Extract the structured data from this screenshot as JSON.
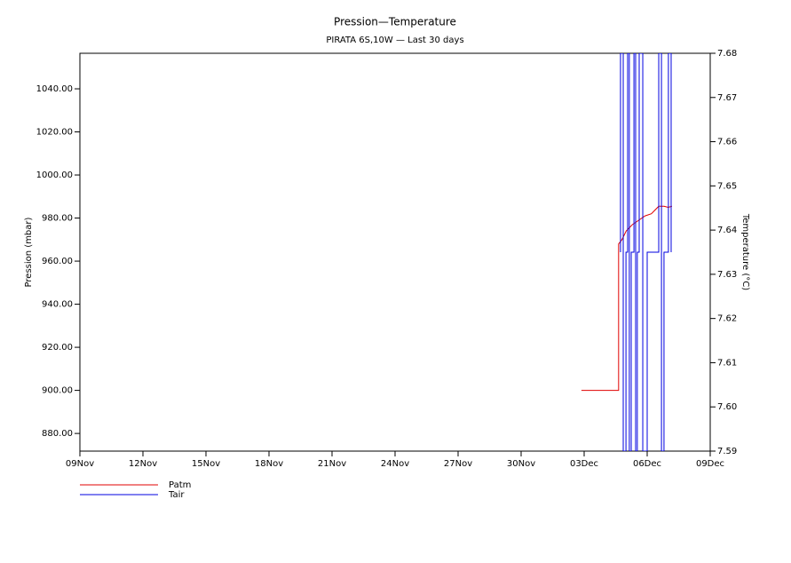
{
  "chart_data": {
    "type": "line",
    "title": "Pression—Temperature",
    "subtitle": "PIRATA 6S,10W — Last 30 days",
    "y_label": "Pression (mbar)",
    "y2_label": "Temperature (°C)",
    "xlim": [
      0,
      30
    ],
    "xticks": [
      {
        "value": 0,
        "label": "09Nov"
      },
      {
        "value": 3,
        "label": "12Nov"
      },
      {
        "value": 6,
        "label": "15Nov"
      },
      {
        "value": 9,
        "label": "18Nov"
      },
      {
        "value": 12,
        "label": "21Nov"
      },
      {
        "value": 15,
        "label": "24Nov"
      },
      {
        "value": 18,
        "label": "27Nov"
      },
      {
        "value": 21,
        "label": "30Nov"
      },
      {
        "value": 24,
        "label": "03Dec"
      },
      {
        "value": 27,
        "label": "06Dec"
      },
      {
        "value": 30,
        "label": "09Dec"
      }
    ],
    "ylim": [
      871.8,
      1056.5
    ],
    "yticks": [
      {
        "value": 880,
        "label": "880.00"
      },
      {
        "value": 900,
        "label": "900.00"
      },
      {
        "value": 920,
        "label": "920.00"
      },
      {
        "value": 940,
        "label": "940.00"
      },
      {
        "value": 960,
        "label": "960.00"
      },
      {
        "value": 980,
        "label": "980.00"
      },
      {
        "value": 1000,
        "label": "1000.00"
      },
      {
        "value": 1020,
        "label": "1020.00"
      },
      {
        "value": 1040,
        "label": "1040.00"
      }
    ],
    "y2lim": [
      7.59,
      7.68
    ],
    "y2ticks": [
      7.59,
      {
        "value": 7.6,
        "label": "7.60"
      },
      7.61,
      7.62,
      7.63,
      7.64,
      7.65,
      7.66,
      7.67,
      7.68
    ],
    "series": [
      {
        "name": "Patm",
        "color": "#e00000",
        "x": [
          23.87,
          25.64,
          25.64,
          25.8,
          26.0,
          26.3,
          26.6,
          26.9,
          27.2,
          27.4,
          27.55,
          27.8,
          28.0,
          28.18
        ],
        "values": [
          900,
          900,
          968,
          970,
          974,
          977,
          979,
          981,
          982,
          984,
          985.5,
          985.5,
          985,
          985.5
        ]
      },
      {
        "name": "Tair",
        "color": "#0000e0",
        "axis": "y2",
        "x": [
          25.73,
          25.73,
          25.86,
          25.86,
          25.99,
          25.99,
          26.07,
          26.07,
          26.15,
          26.15,
          26.24,
          26.24,
          26.37,
          26.37,
          26.45,
          26.45,
          26.53,
          26.53,
          26.62,
          26.62,
          26.79,
          26.79,
          27.0,
          27.0,
          27.55,
          27.55,
          27.68,
          27.68,
          27.8,
          27.8,
          28.01,
          28.01,
          28.14,
          28.14
        ],
        "values": [
          7.635,
          7.68,
          7.68,
          7.59,
          7.59,
          7.635,
          7.635,
          7.68,
          7.68,
          7.59,
          7.59,
          7.635,
          7.635,
          7.68,
          7.68,
          7.59,
          7.59,
          7.635,
          7.635,
          7.68,
          7.68,
          7.59,
          7.59,
          7.635,
          7.635,
          7.68,
          7.68,
          7.59,
          7.59,
          7.635,
          7.635,
          7.68,
          7.68,
          7.635
        ]
      }
    ]
  }
}
